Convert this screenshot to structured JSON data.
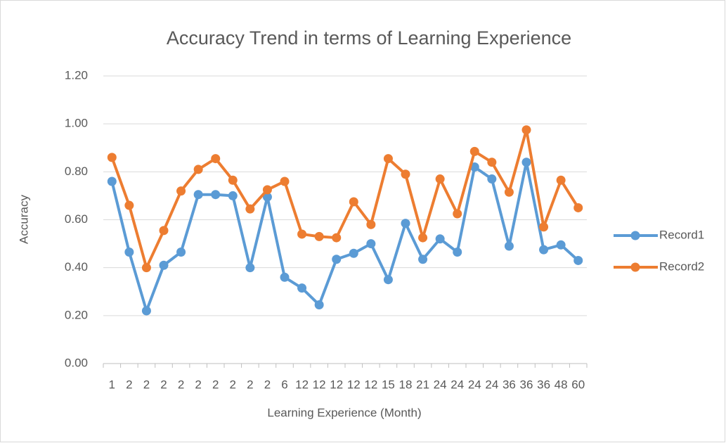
{
  "chart_data": {
    "type": "line",
    "title": "Accuracy Trend in terms of Learning Experience",
    "x_label": "Learning Experience (Month)",
    "y_label": "Accuracy",
    "categories": [
      "1",
      "2",
      "2",
      "2",
      "2",
      "2",
      "2",
      "2",
      "2",
      "2",
      "6",
      "12",
      "12",
      "12",
      "12",
      "12",
      "15",
      "18",
      "21",
      "24",
      "24",
      "24",
      "24",
      "36",
      "36",
      "36",
      "48",
      "60"
    ],
    "series": [
      {
        "name": "Record1",
        "color": "#5b9bd5",
        "values": [
          0.76,
          0.465,
          0.22,
          0.41,
          0.465,
          0.705,
          0.705,
          0.7,
          0.4,
          0.695,
          0.36,
          0.315,
          0.245,
          0.435,
          0.46,
          0.5,
          0.35,
          0.585,
          0.435,
          0.52,
          0.465,
          0.82,
          0.77,
          0.49,
          0.84,
          0.475,
          0.495,
          0.43
        ]
      },
      {
        "name": "Record2",
        "color": "#ed7d31",
        "values": [
          0.86,
          0.66,
          0.4,
          0.555,
          0.72,
          0.81,
          0.855,
          0.765,
          0.645,
          0.725,
          0.76,
          0.54,
          0.53,
          0.525,
          0.675,
          0.58,
          0.855,
          0.79,
          0.525,
          0.77,
          0.625,
          0.885,
          0.84,
          0.715,
          0.975,
          0.57,
          0.765,
          0.65
        ]
      }
    ],
    "ylim": [
      0,
      1.2
    ],
    "yticks": [
      {
        "value": 0,
        "label": "0.00"
      },
      {
        "value": 0.2,
        "label": "0.20"
      },
      {
        "value": 0.4,
        "label": "0.40"
      },
      {
        "value": 0.6,
        "label": "0.60"
      },
      {
        "value": 0.8,
        "label": "0.80"
      },
      {
        "value": 1.0,
        "label": "1.00"
      },
      {
        "value": 1.2,
        "label": "1.20"
      }
    ],
    "grid": true,
    "legend": "right"
  }
}
